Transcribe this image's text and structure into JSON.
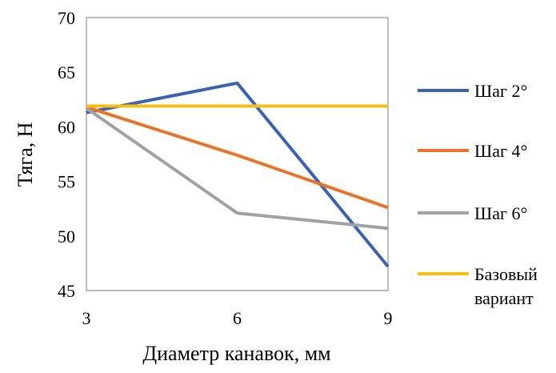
{
  "chart_data": {
    "type": "line",
    "xlabel": "Диаметр канавок, мм",
    "ylabel": "Тяга, Н",
    "x": [
      3,
      6,
      9
    ],
    "xlim": [
      3,
      9
    ],
    "ylim": [
      45,
      70
    ],
    "yticks": [
      45,
      50,
      55,
      60,
      65,
      70
    ],
    "xticks": [
      3,
      6,
      9
    ],
    "grid": false,
    "legend_position": "right",
    "series": [
      {
        "name": "Шаг 2°",
        "color": "#3a62b0",
        "values": [
          61.3,
          64.0,
          47.2
        ]
      },
      {
        "name": "Шаг 4°",
        "color": "#e8742a",
        "values": [
          61.8,
          57.4,
          52.6
        ]
      },
      {
        "name": "Шаг 6°",
        "color": "#a2a2a2",
        "values": [
          61.7,
          52.1,
          50.7
        ]
      },
      {
        "name": "Базовый вариант",
        "name_lines": [
          "Базовый",
          "вариант"
        ],
        "color": "#f6bd14",
        "values": [
          61.9,
          61.9,
          61.9
        ]
      }
    ]
  }
}
